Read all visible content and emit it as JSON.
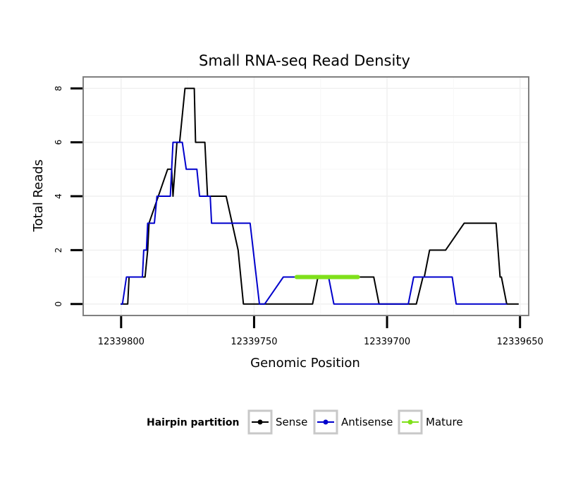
{
  "chart_data": {
    "type": "line",
    "title": "Small RNA-seq Read Density",
    "xlabel": "Genomic Position",
    "ylabel": "Total Reads",
    "xlim": [
      12339814,
      12339647
    ],
    "ylim": [
      -0.4,
      8.4
    ],
    "x_reversed": true,
    "grid": true,
    "x_ticks": [
      12339800,
      12339750,
      12339700,
      12339650
    ],
    "x_tick_labels": [
      "12339800",
      "12339750",
      "12339700",
      "12339650"
    ],
    "y_ticks": [
      0,
      2,
      4,
      6,
      8
    ],
    "y_tick_labels": [
      "0",
      "2",
      "4",
      "6",
      "8"
    ],
    "legend": {
      "title": "Hairpin partition",
      "position": "bottom",
      "entries": [
        {
          "name": "Sense",
          "color": "#000000"
        },
        {
          "name": "Antisense",
          "color": "#0000cc"
        },
        {
          "name": "Mature",
          "color": "#7fe01a"
        }
      ]
    },
    "series": [
      {
        "name": "Sense",
        "color": "#000000",
        "x": [
          12339800.2,
          12339797.5,
          12339797,
          12339793.5,
          12339792.5,
          12339791.5,
          12339791,
          12339790,
          12339789.5,
          12339782.5,
          12339781,
          12339780.5,
          12339779,
          12339778,
          12339776,
          12339772.5,
          12339772,
          12339768.5,
          12339767.5,
          12339760.5,
          12339756,
          12339754,
          12339739,
          12339731,
          12339728,
          12339726,
          12339705,
          12339703,
          12339690,
          12339689,
          12339686.5,
          12339686,
          12339684,
          12339679,
          12339678,
          12339671,
          12339669.5,
          12339659,
          12339657.5,
          12339657,
          12339655,
          12339650.5
        ],
        "y": [
          0,
          0,
          1,
          1,
          1,
          1,
          1,
          2,
          3,
          5,
          5,
          4,
          6,
          6,
          8,
          8,
          6,
          6,
          4,
          4,
          2,
          0,
          0,
          0,
          0,
          1,
          1,
          0,
          0,
          0,
          1,
          1,
          2,
          2,
          2,
          3,
          3,
          3,
          1,
          1,
          0,
          0
        ]
      },
      {
        "name": "Antisense",
        "color": "#0000cc",
        "x": [
          12339800.2,
          12339799.5,
          12339798,
          12339795.5,
          12339794.5,
          12339792,
          12339791.5,
          12339790.5,
          12339790,
          12339787.5,
          12339786.5,
          12339781.5,
          12339780.5,
          12339777,
          12339775.5,
          12339771.5,
          12339770.5,
          12339766.5,
          12339766,
          12339751.5,
          12339748,
          12339746,
          12339739,
          12339738,
          12339727,
          12339722,
          12339720,
          12339715,
          12339694,
          12339692,
          12339690,
          12339678.5,
          12339677.5,
          12339675.5,
          12339674,
          12339655
        ],
        "y": [
          0,
          0,
          1,
          1,
          1,
          1,
          2,
          2,
          3,
          3,
          4,
          4,
          6,
          6,
          5,
          5,
          4,
          4,
          3,
          3,
          0,
          0,
          1,
          1,
          1,
          1,
          0,
          0,
          0,
          0,
          1,
          1,
          1,
          1,
          0,
          0
        ]
      },
      {
        "name": "Mature",
        "color": "#7fe01a",
        "x": [
          12339734,
          12339711
        ],
        "y": [
          1,
          1
        ]
      }
    ]
  }
}
